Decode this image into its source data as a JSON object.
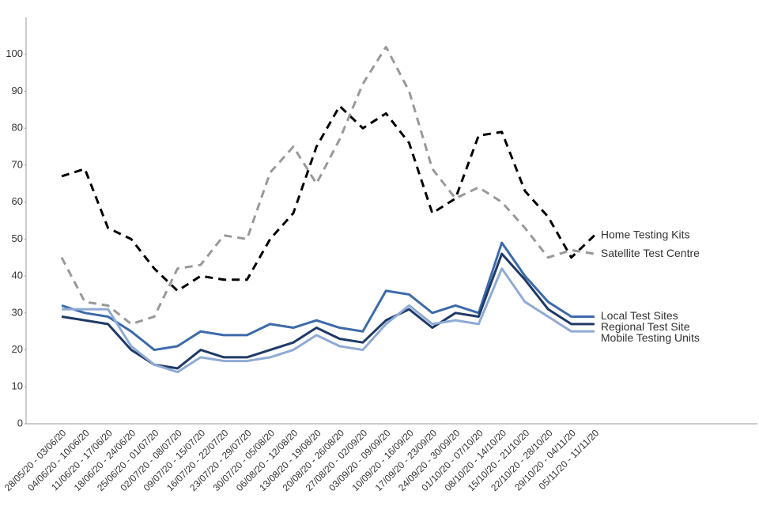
{
  "chart_data": {
    "type": "line",
    "categories": [
      "28/05/20 - 03/06/20",
      "04/06/20 - 10/06/20",
      "11/06/20 - 17/06/20",
      "18/06/20 - 24/06/20",
      "25/06/20 - 01/07/20",
      "02/07/20 - 08/07/20",
      "09/07/20 - 15/07/20",
      "16/07/20 - 22/07/20",
      "23/07/20 - 29/07/20",
      "30/07/20 - 05/08/20",
      "06/08/20 - 12/08/20",
      "13/08/20 - 19/08/20",
      "20/08/20 - 26/08/20",
      "27/08/20 - 02/09/20",
      "03/09/20 - 09/09/20",
      "10/09/20 - 16/09/20",
      "17/09/20 - 23/09/20",
      "24/09/20 - 30/09/20",
      "01/10/20 - 07/10/20",
      "08/10/20 - 14/10/20",
      "15/10/20 - 21/10/20",
      "22/10/20 - 28/10/20",
      "29/10/20 - 04/11/20",
      "05/11/20 - 11/11/20"
    ],
    "series": [
      {
        "name": "Home Testing Kits",
        "color": "#000000",
        "dashed": true,
        "values": [
          67,
          69,
          53,
          50,
          42,
          36,
          40,
          39,
          39,
          50,
          57,
          75,
          86,
          80,
          84,
          76,
          57,
          61,
          78,
          79,
          63,
          56,
          45,
          51
        ]
      },
      {
        "name": "Satellite Test Centre",
        "color": "#999999",
        "dashed": true,
        "values": [
          45,
          33,
          32,
          27,
          29,
          42,
          43,
          51,
          50,
          68,
          75,
          65,
          77,
          92,
          102,
          90,
          69,
          61,
          64,
          60,
          53,
          45,
          47,
          46
        ]
      },
      {
        "name": "Local Test Sites",
        "color": "#3d6aaa",
        "dashed": false,
        "values": [
          32,
          30,
          29,
          25,
          20,
          21,
          25,
          24,
          24,
          27,
          26,
          28,
          26,
          25,
          36,
          35,
          30,
          32,
          30,
          49,
          40,
          33,
          29,
          29
        ]
      },
      {
        "name": "Regional Test Site",
        "color": "#1f3a66",
        "dashed": false,
        "values": [
          29,
          28,
          27,
          20,
          16,
          15,
          20,
          18,
          18,
          20,
          22,
          26,
          23,
          22,
          28,
          31,
          26,
          30,
          29,
          46,
          39,
          31,
          27,
          27
        ]
      },
      {
        "name": "Mobile Testing Units",
        "color": "#8faad4",
        "dashed": false,
        "values": [
          31,
          31,
          31,
          21,
          16,
          14,
          18,
          17,
          17,
          18,
          20,
          24,
          21,
          20,
          27,
          32,
          27,
          28,
          27,
          42,
          33,
          29,
          25,
          25
        ]
      }
    ],
    "ylim": [
      0,
      110
    ],
    "yticks": [
      0,
      10,
      20,
      30,
      40,
      50,
      60,
      70,
      80,
      90,
      100
    ],
    "grid": false
  }
}
